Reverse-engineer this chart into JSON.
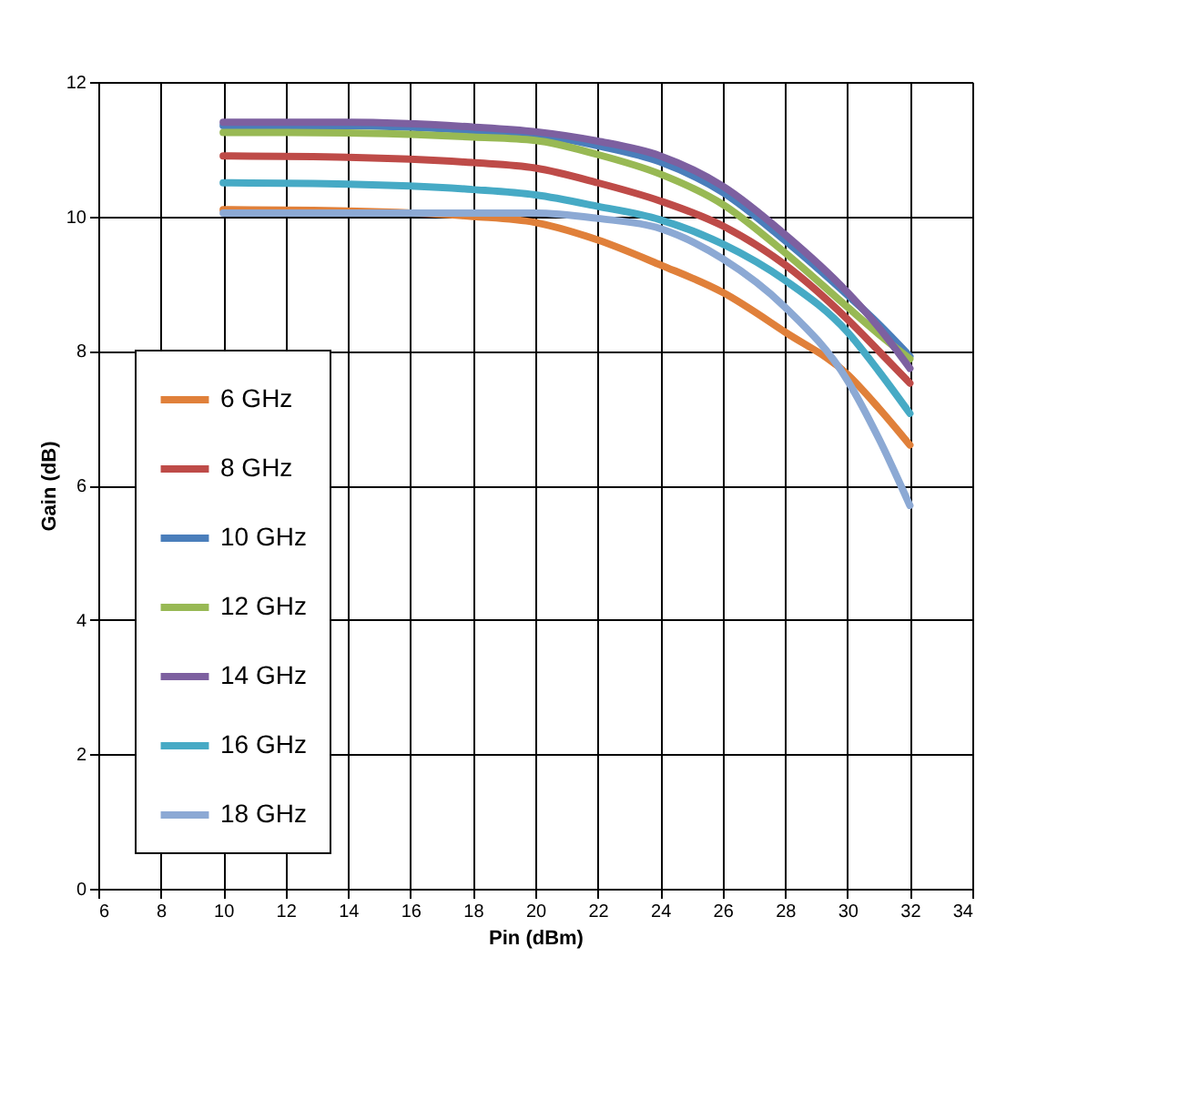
{
  "chart_data": {
    "type": "line",
    "xlabel": "Pin (dBm)",
    "ylabel": "Gain (dB)",
    "x": [
      10,
      14,
      18,
      20,
      22,
      24,
      26,
      28,
      30,
      31,
      32
    ],
    "xlim": [
      6,
      34
    ],
    "xticks": [
      6,
      8,
      10,
      12,
      14,
      16,
      18,
      20,
      22,
      24,
      26,
      28,
      30,
      32,
      34
    ],
    "ylim": [
      0,
      12
    ],
    "yticks": [
      0,
      2,
      4,
      6,
      8,
      10,
      12
    ],
    "grid": true,
    "legend": "bottom left",
    "marker": "none",
    "line_style": "solid",
    "series": [
      {
        "name": "6 GHz",
        "color": "#e0803a",
        "values": [
          10.1,
          10.08,
          10.0,
          9.91,
          9.65,
          9.28,
          8.87,
          8.28,
          7.65,
          7.15,
          6.6
        ]
      },
      {
        "name": "8 GHz",
        "color": "#be4b48",
        "values": [
          10.9,
          10.88,
          10.8,
          10.72,
          10.5,
          10.23,
          9.86,
          9.28,
          8.47,
          8.0,
          7.52
        ]
      },
      {
        "name": "10 GHz",
        "color": "#4a7ebb",
        "values": [
          11.35,
          11.35,
          11.28,
          11.22,
          11.05,
          10.81,
          10.36,
          9.64,
          8.83,
          8.4,
          7.92
        ]
      },
      {
        "name": "12 GHz",
        "color": "#98b954",
        "values": [
          11.25,
          11.24,
          11.18,
          11.13,
          10.92,
          10.63,
          10.18,
          9.46,
          8.65,
          8.25,
          7.88
        ]
      },
      {
        "name": "14 GHz",
        "color": "#7d60a0",
        "values": [
          11.4,
          11.4,
          11.33,
          11.26,
          11.12,
          10.9,
          10.45,
          9.73,
          8.87,
          8.35,
          7.74
        ]
      },
      {
        "name": "16 GHz",
        "color": "#46aac5",
        "values": [
          10.5,
          10.48,
          10.4,
          10.32,
          10.15,
          9.95,
          9.59,
          9.05,
          8.28,
          7.7,
          7.07
        ]
      },
      {
        "name": "18 GHz",
        "color": "#8ca9d4",
        "values": [
          10.05,
          10.05,
          10.05,
          10.05,
          9.97,
          9.82,
          9.37,
          8.65,
          7.56,
          6.7,
          5.7
        ]
      }
    ]
  }
}
